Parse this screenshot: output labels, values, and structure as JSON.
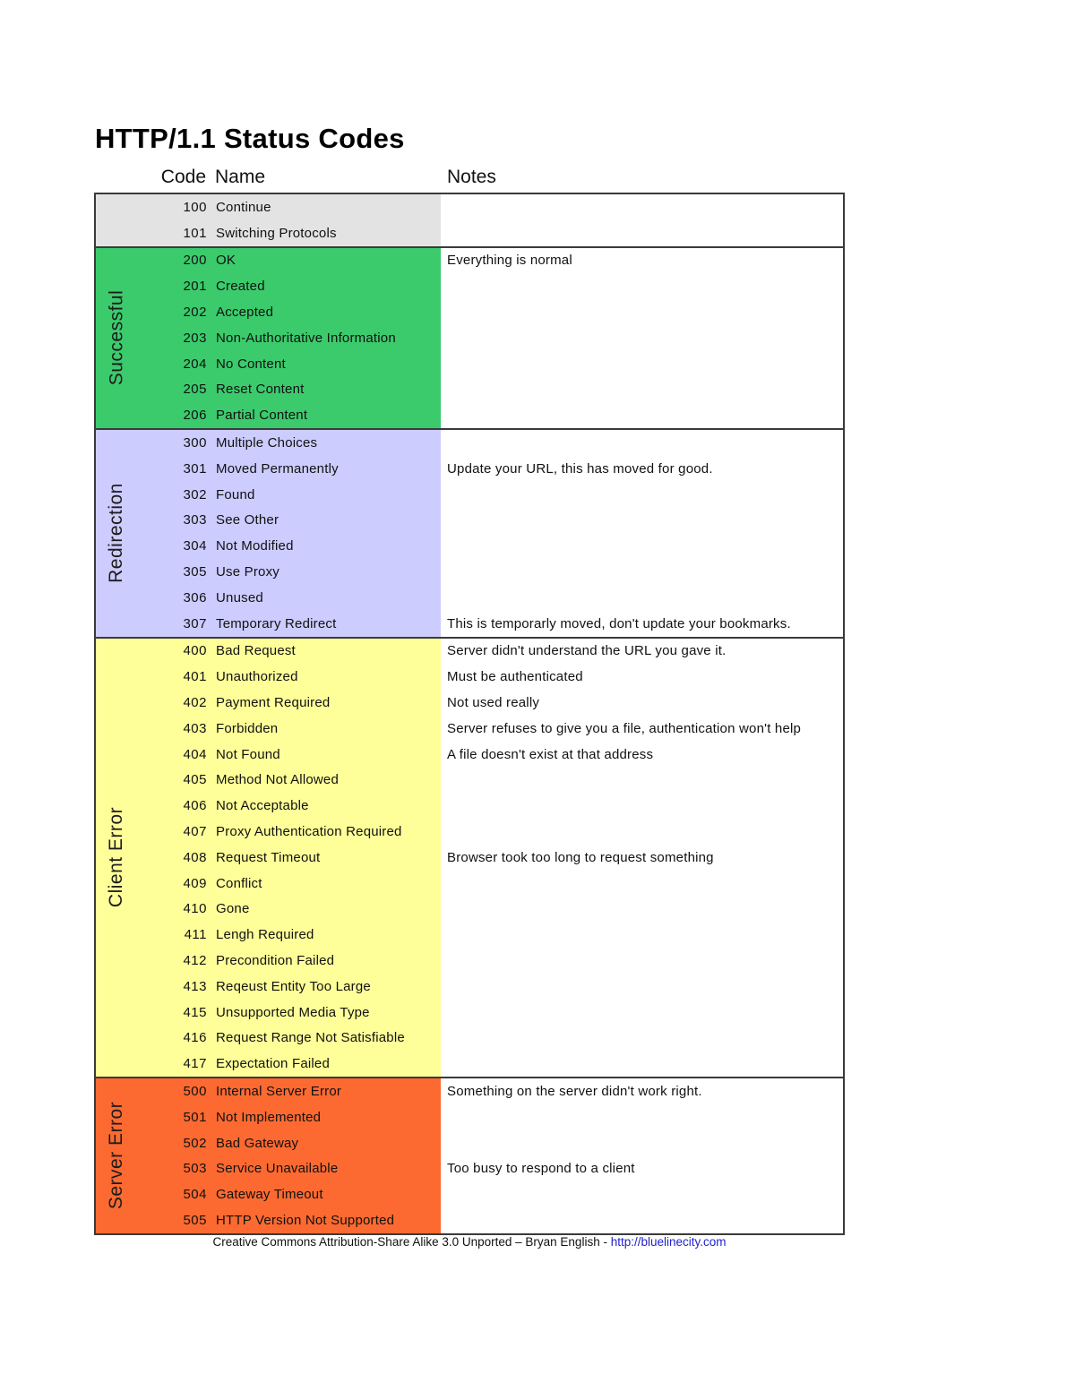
{
  "title": "HTTP/1.1 Status Codes",
  "headers": {
    "code": "Code",
    "name": "Name",
    "notes": "Notes"
  },
  "colors": {
    "informational_bg": "#E3E3E3",
    "successful_bg": "#3BCB6C",
    "redirection_bg": "#CCCCFF",
    "client_error_bg": "#FFFF99",
    "server_error_bg": "#FC6A31",
    "table_border": "#3A3A3A",
    "link": "#2222CC"
  },
  "table": {
    "sections": [
      {
        "key": "informational",
        "label": "",
        "color": "#E3E3E3",
        "rows": [
          {
            "code": "100",
            "name": "Continue",
            "note": ""
          },
          {
            "code": "101",
            "name": "Switching Protocols",
            "note": ""
          }
        ]
      },
      {
        "key": "successful",
        "label": "Successful",
        "color": "#3BCB6C",
        "rows": [
          {
            "code": "200",
            "name": "OK",
            "note": "Everything is normal"
          },
          {
            "code": "201",
            "name": "Created",
            "note": ""
          },
          {
            "code": "202",
            "name": "Accepted",
            "note": ""
          },
          {
            "code": "203",
            "name": "Non-Authoritative Information",
            "note": ""
          },
          {
            "code": "204",
            "name": "No Content",
            "note": ""
          },
          {
            "code": "205",
            "name": "Reset Content",
            "note": ""
          },
          {
            "code": "206",
            "name": "Partial Content",
            "note": ""
          }
        ]
      },
      {
        "key": "redirection",
        "label": "Redirection",
        "color": "#CCCCFF",
        "rows": [
          {
            "code": "300",
            "name": "Multiple Choices",
            "note": ""
          },
          {
            "code": "301",
            "name": "Moved Permanently",
            "note": "Update your URL, this has moved for good."
          },
          {
            "code": "302",
            "name": "Found",
            "note": ""
          },
          {
            "code": "303",
            "name": "See Other",
            "note": ""
          },
          {
            "code": "304",
            "name": "Not Modified",
            "note": ""
          },
          {
            "code": "305",
            "name": "Use Proxy",
            "note": ""
          },
          {
            "code": "306",
            "name": "Unused",
            "note": ""
          },
          {
            "code": "307",
            "name": "Temporary Redirect",
            "note": "This is temporarly moved, don't update your bookmarks."
          }
        ]
      },
      {
        "key": "client-error",
        "label": "Client Error",
        "color": "#FFFF99",
        "rows": [
          {
            "code": "400",
            "name": "Bad Request",
            "note": "Server didn't understand the URL you gave it."
          },
          {
            "code": "401",
            "name": "Unauthorized",
            "note": "Must be authenticated"
          },
          {
            "code": "402",
            "name": "Payment Required",
            "note": "Not used really"
          },
          {
            "code": "403",
            "name": "Forbidden",
            "note": "Server refuses to give you a file, authentication won't help"
          },
          {
            "code": "404",
            "name": "Not Found",
            "note": "A file doesn't exist at that address"
          },
          {
            "code": "405",
            "name": "Method Not Allowed",
            "note": ""
          },
          {
            "code": "406",
            "name": "Not Acceptable",
            "note": ""
          },
          {
            "code": "407",
            "name": "Proxy Authentication Required",
            "note": ""
          },
          {
            "code": "408",
            "name": "Request Timeout",
            "note": "Browser took too long to request something"
          },
          {
            "code": "409",
            "name": "Conflict",
            "note": ""
          },
          {
            "code": "410",
            "name": "Gone",
            "note": ""
          },
          {
            "code": "411",
            "name": "Lengh Required",
            "note": ""
          },
          {
            "code": "412",
            "name": "Precondition Failed",
            "note": ""
          },
          {
            "code": "413",
            "name": "Reqeust Entity Too Large",
            "note": ""
          },
          {
            "code": "415",
            "name": "Unsupported Media Type",
            "note": ""
          },
          {
            "code": "416",
            "name": "Request Range Not Satisfiable",
            "note": ""
          },
          {
            "code": "417",
            "name": "Expectation Failed",
            "note": ""
          }
        ]
      },
      {
        "key": "server-error",
        "label": "Server Error",
        "color": "#FC6A31",
        "rows": [
          {
            "code": "500",
            "name": "Internal Server Error",
            "note": "Something on the server didn't work right."
          },
          {
            "code": "501",
            "name": "Not Implemented",
            "note": ""
          },
          {
            "code": "502",
            "name": "Bad Gateway",
            "note": ""
          },
          {
            "code": "503",
            "name": "Service Unavailable",
            "note": "Too busy to respond to a client"
          },
          {
            "code": "504",
            "name": "Gateway Timeout",
            "note": ""
          },
          {
            "code": "505",
            "name": "HTTP Version Not Supported",
            "note": ""
          }
        ]
      }
    ]
  },
  "footer": {
    "text": "Creative Commons Attribution-Share Alike 3.0 Unported – Bryan English - ",
    "link_label": "http://bluelinecity.com"
  }
}
